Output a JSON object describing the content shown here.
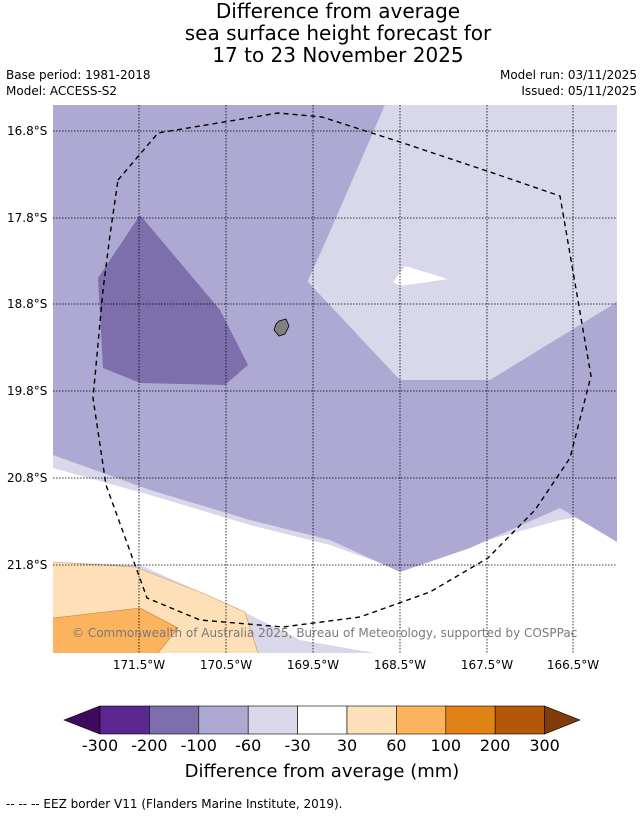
{
  "title": {
    "line1": "Difference from average",
    "line2": "sea surface height forecast for",
    "line3": "17 to 23 November 2025"
  },
  "meta": {
    "base_period": "Base period: 1981-2018",
    "model": "Model: ACCESS-S2",
    "model_run": "Model run: 03/11/2025",
    "issued": "Issued: 05/11/2025"
  },
  "map": {
    "lat_labels": [
      "16.8°S",
      "17.8°S",
      "18.8°S",
      "19.8°S",
      "20.8°S",
      "21.8°S"
    ],
    "lon_labels": [
      "171.5°W",
      "170.5°W",
      "169.5°W",
      "168.5°W",
      "167.5°W",
      "166.5°W"
    ],
    "copyright": "© Commonwealth of Australia 2025, Bureau of Meteorology, supported by COSPPac",
    "island_color": "#808080",
    "eez_style": "dashed black line"
  },
  "colorbar": {
    "labels": [
      "-300",
      "-200",
      "-100",
      "-60",
      "-30",
      "30",
      "60",
      "100",
      "200",
      "300"
    ],
    "colors": [
      "#3f0a5c",
      "#5a2790",
      "#7c6fac",
      "#aea9d2",
      "#d8d8ea",
      "#ffffff",
      "#fde0b8",
      "#fbb35e",
      "#e08214",
      "#b35808",
      "#7f3b08"
    ],
    "title": "Difference from average (mm)"
  },
  "footnote": "--  --  -- EEZ border V11 (Flanders Marine Institute, 2019)."
}
